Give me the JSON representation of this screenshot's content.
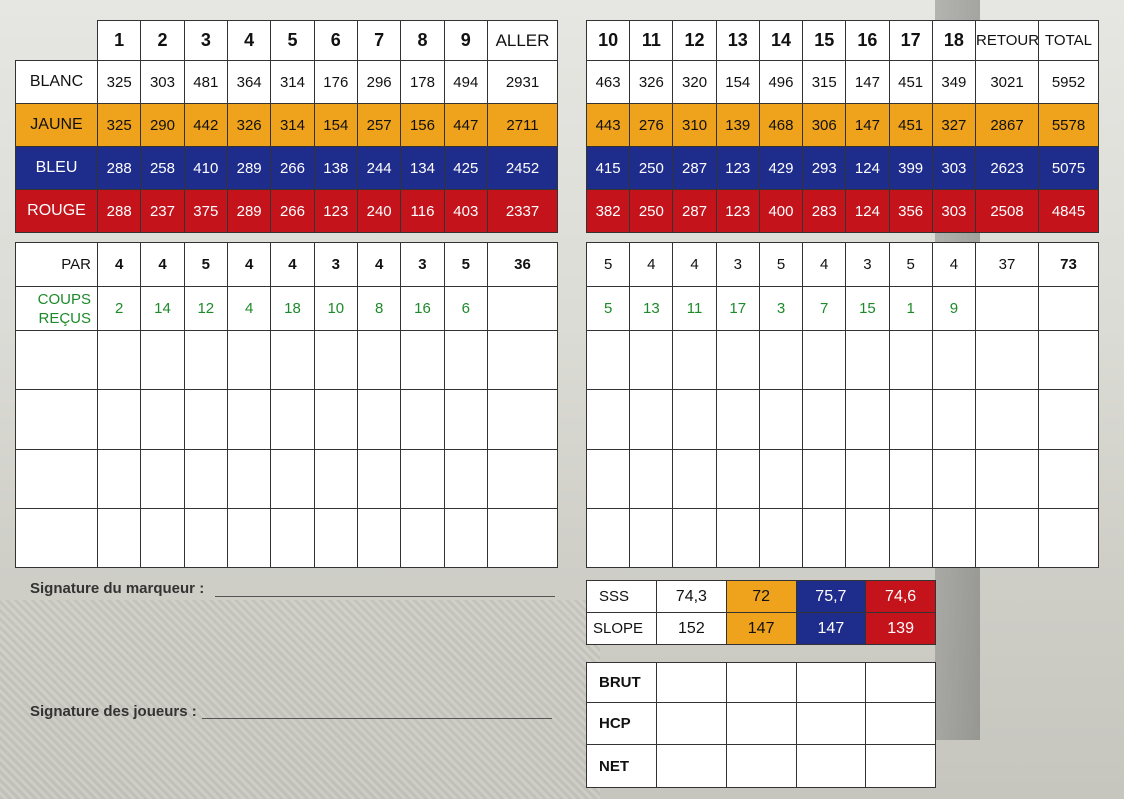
{
  "front": {
    "holes": [
      "1",
      "2",
      "3",
      "4",
      "5",
      "6",
      "7",
      "8",
      "9"
    ],
    "total_label": "ALLER",
    "tees": [
      {
        "label": "BLANC",
        "values": [
          "325",
          "303",
          "481",
          "364",
          "314",
          "176",
          "296",
          "178",
          "494"
        ],
        "total": "2931"
      },
      {
        "label": "JAUNE",
        "values": [
          "325",
          "290",
          "442",
          "326",
          "314",
          "154",
          "257",
          "156",
          "447"
        ],
        "total": "2711"
      },
      {
        "label": "BLEU",
        "values": [
          "288",
          "258",
          "410",
          "289",
          "266",
          "138",
          "244",
          "134",
          "425"
        ],
        "total": "2452"
      },
      {
        "label": "ROUGE",
        "values": [
          "288",
          "237",
          "375",
          "289",
          "266",
          "123",
          "240",
          "116",
          "403"
        ],
        "total": "2337"
      }
    ],
    "par_label": "PAR",
    "par": [
      "4",
      "4",
      "5",
      "4",
      "4",
      "3",
      "4",
      "3",
      "5"
    ],
    "par_total": "36",
    "coups_label_1": "COUPS",
    "coups_label_2": "REÇUS",
    "coups": [
      "2",
      "14",
      "12",
      "4",
      "18",
      "10",
      "8",
      "16",
      "6"
    ]
  },
  "back": {
    "holes": [
      "10",
      "11",
      "12",
      "13",
      "14",
      "15",
      "16",
      "17",
      "18"
    ],
    "total_label": "RETOUR",
    "grand_label": "TOTAL",
    "tees": [
      {
        "values": [
          "463",
          "326",
          "320",
          "154",
          "496",
          "315",
          "147",
          "451",
          "349"
        ],
        "total": "3021",
        "grand": "5952"
      },
      {
        "values": [
          "443",
          "276",
          "310",
          "139",
          "468",
          "306",
          "147",
          "451",
          "327"
        ],
        "total": "2867",
        "grand": "5578"
      },
      {
        "values": [
          "415",
          "250",
          "287",
          "123",
          "429",
          "293",
          "124",
          "399",
          "303"
        ],
        "total": "2623",
        "grand": "5075"
      },
      {
        "values": [
          "382",
          "250",
          "287",
          "123",
          "400",
          "283",
          "124",
          "356",
          "303"
        ],
        "total": "2508",
        "grand": "4845"
      }
    ],
    "par": [
      "5",
      "4",
      "4",
      "3",
      "5",
      "4",
      "3",
      "5",
      "4"
    ],
    "par_total": "37",
    "par_grand": "73",
    "coups": [
      "5",
      "13",
      "11",
      "17",
      "3",
      "7",
      "15",
      "1",
      "9"
    ]
  },
  "signatures": {
    "marker": "Signature du marqueur :",
    "players": "Signature des joueurs :"
  },
  "ratings": {
    "sss_label": "SSS",
    "sss": [
      "74,3",
      "72",
      "75,7",
      "74,6"
    ],
    "slope_label": "SLOPE",
    "slope": [
      "152",
      "147",
      "147",
      "139"
    ]
  },
  "results": {
    "labels": [
      "BRUT",
      "HCP",
      "NET"
    ]
  },
  "colors": {
    "blanc": "#ffffff",
    "jaune": "#efa21c",
    "bleu": "#1e2c8c",
    "rouge": "#c5131c",
    "coups_text": "#1d8a2a"
  }
}
